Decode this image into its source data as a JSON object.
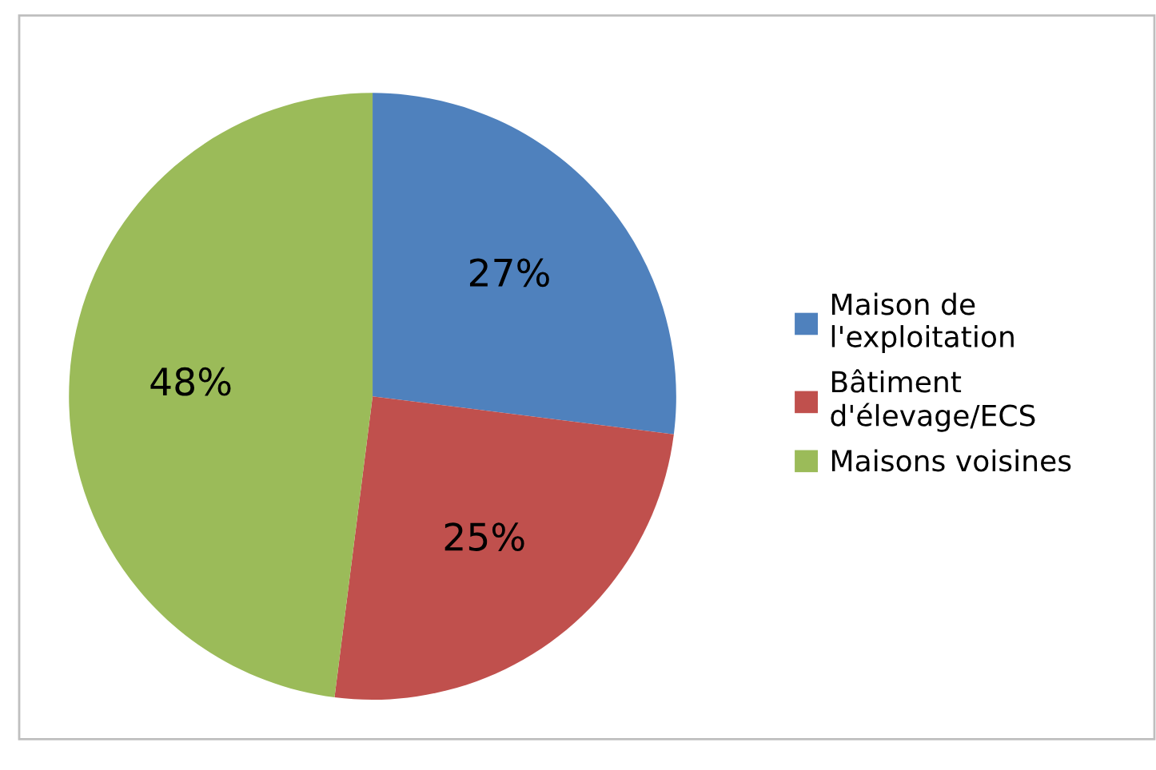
{
  "chart_data": {
    "type": "pie",
    "categories": [
      "Maison de\nl'exploitation",
      "Bâtiment\nd'élevage/ECS",
      "Maisons voisines"
    ],
    "values": [
      27,
      25,
      48
    ],
    "colors": [
      "#4f81bd",
      "#c0504d",
      "#9bbb59"
    ],
    "value_labels": [
      "27%",
      "25%",
      "48%"
    ],
    "legend": "right"
  }
}
